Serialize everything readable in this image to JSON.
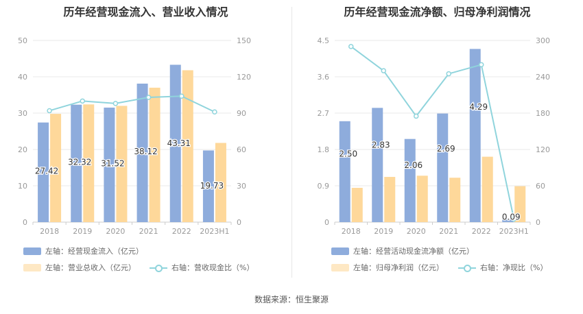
{
  "source": "数据来源：恒生聚源",
  "colors": {
    "bar_primary": "#8eacdc",
    "bar_secondary": "#fed89a",
    "line": "#8fd4dc",
    "axis_text": "#999999",
    "grid": "#e8e8e8"
  },
  "chart_data": [
    {
      "type": "bar",
      "title": "历年经营现金流入、营业收入情况",
      "categories": [
        "2018",
        "2019",
        "2020",
        "2021",
        "2022",
        "2023H1"
      ],
      "left_axis": {
        "min": 0,
        "max": 50,
        "ticks": [
          "0",
          "10",
          "20",
          "30",
          "40",
          "50"
        ]
      },
      "right_axis": {
        "min": 0,
        "max": 150,
        "ticks": [
          "0",
          "30",
          "60",
          "90",
          "120",
          "150"
        ]
      },
      "series": [
        {
          "name": "左轴：经营现金流入（亿元）",
          "axis": "left",
          "kind": "bar",
          "values": [
            27.42,
            32.32,
            31.52,
            38.12,
            43.31,
            19.73
          ],
          "labels": [
            "27.42",
            "32.32",
            "31.52",
            "38.12",
            "43.31",
            "19.73"
          ]
        },
        {
          "name": "左轴：营业总收入（亿元）",
          "axis": "left",
          "kind": "bar",
          "values": [
            29.8,
            32.4,
            32.0,
            37.0,
            41.8,
            21.8
          ]
        },
        {
          "name": "右轴：营收现金比（%）",
          "axis": "right",
          "kind": "line",
          "values": [
            92,
            100,
            98,
            103,
            104,
            null
          ],
          "last_value": 91
        }
      ]
    },
    {
      "type": "bar",
      "title": "历年经营现金流净额、归母净利润情况",
      "categories": [
        "2018",
        "2019",
        "2020",
        "2021",
        "2022",
        "2023H1"
      ],
      "left_axis": {
        "min": 0,
        "max": 4.5,
        "ticks": [
          "0",
          "0.9",
          "1.8",
          "2.7",
          "3.6",
          "4.5"
        ]
      },
      "right_axis": {
        "min": 0,
        "max": 300,
        "ticks": [
          "0",
          "60",
          "120",
          "180",
          "240",
          "300"
        ]
      },
      "series": [
        {
          "name": "左轴：经营活动现金流净额（亿元）",
          "axis": "left",
          "kind": "bar",
          "values": [
            2.5,
            2.83,
            2.06,
            2.69,
            4.29,
            0.09
          ],
          "labels": [
            "2.50",
            "2.83",
            "2.06",
            "2.69",
            "4.29",
            "0.09"
          ]
        },
        {
          "name": "左轴：归母净利润（亿元）",
          "axis": "left",
          "kind": "bar",
          "values": [
            0.85,
            1.12,
            1.15,
            1.1,
            1.62,
            0.89
          ]
        },
        {
          "name": "右轴：净现比（%）",
          "axis": "right",
          "kind": "line",
          "values": [
            290,
            250,
            175,
            245,
            260,
            5
          ]
        }
      ]
    }
  ]
}
